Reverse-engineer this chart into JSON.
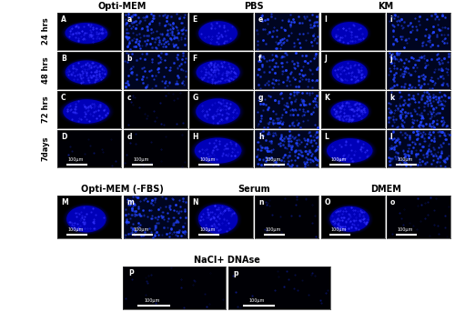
{
  "bg_color": "#000000",
  "panel_bg": "#000010",
  "blue_mid": "#0000CD",
  "blue_dark": "#000080",
  "blue_bright": "#1010FF",
  "fig_bg": "#ffffff",
  "title_color": "#000000",
  "label_color": "#ffffff",
  "row_label_color": "#000000",
  "col_titles": [
    "Opti-MEM",
    "PBS",
    "KM"
  ],
  "col_titles2": [
    "Opti-MEM (-FBS)",
    "Serum",
    "DMEM"
  ],
  "col_title3": "NaCl+ DNAse",
  "row_labels": [
    "24 hrs",
    "48 hrs",
    "72 hrs",
    "7days"
  ],
  "upper_labels_left": [
    "A",
    "a",
    "B",
    "b",
    "C",
    "c",
    "D",
    "d"
  ],
  "upper_labels_mid": [
    "E",
    "e",
    "F",
    "f",
    "G",
    "g",
    "H",
    "h"
  ],
  "upper_labels_right": [
    "I",
    "i",
    "J",
    "j",
    "K",
    "k",
    "L",
    "l"
  ],
  "lower_labels_left": [
    "M",
    "m"
  ],
  "lower_labels_mid": [
    "N",
    "n"
  ],
  "lower_labels_right": [
    "O",
    "o"
  ],
  "bottom_labels": [
    "P",
    "p"
  ],
  "scale_bar_text": "100μm",
  "scalebar_color": "#ffffff"
}
